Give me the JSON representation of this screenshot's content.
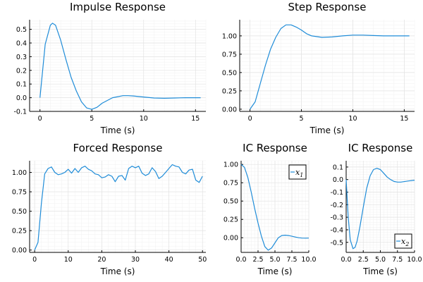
{
  "chart_data": [
    {
      "type": "line",
      "title": "Impulse Response",
      "xlabel": "Time (s)",
      "xlim": [
        -1,
        16
      ],
      "ylim": [
        -0.1,
        0.57
      ],
      "xticks": [
        {
          "v": 0,
          "label": "0"
        },
        {
          "v": 5,
          "label": "5"
        },
        {
          "v": 10,
          "label": "10"
        },
        {
          "v": 15,
          "label": "15"
        }
      ],
      "yticks": [
        {
          "v": -0.1,
          "label": "-0.1"
        },
        {
          "v": 0,
          "label": "0.0"
        },
        {
          "v": 0.1,
          "label": "0.1"
        },
        {
          "v": 0.2,
          "label": "0.2"
        },
        {
          "v": 0.3,
          "label": "0.3"
        },
        {
          "v": 0.4,
          "label": "0.4"
        },
        {
          "v": 0.5,
          "label": "0.5"
        }
      ],
      "grid": true,
      "series": [
        {
          "x": [
            0,
            0.5,
            1,
            1.2,
            1.5,
            2,
            2.5,
            3,
            3.5,
            4,
            4.5,
            5,
            5.5,
            6,
            7,
            8,
            8.5,
            9,
            10,
            11,
            12,
            13,
            14,
            15,
            15.5
          ],
          "y": [
            0,
            0.39,
            0.53,
            0.545,
            0.53,
            0.42,
            0.28,
            0.15,
            0.05,
            -0.03,
            -0.075,
            -0.085,
            -0.07,
            -0.04,
            0.0,
            0.015,
            0.015,
            0.013,
            0.005,
            -0.002,
            -0.004,
            -0.002,
            0.0,
            0.0,
            0.0
          ]
        }
      ]
    },
    {
      "type": "line",
      "title": "Step Response",
      "xlabel": "Time (s)",
      "xlim": [
        -1,
        16
      ],
      "ylim": [
        -0.03,
        1.22
      ],
      "xticks": [
        {
          "v": 0,
          "label": "0"
        },
        {
          "v": 5,
          "label": "5"
        },
        {
          "v": 10,
          "label": "10"
        },
        {
          "v": 15,
          "label": "15"
        }
      ],
      "yticks": [
        {
          "v": 0,
          "label": "0.00"
        },
        {
          "v": 0.25,
          "label": "0.25"
        },
        {
          "v": 0.5,
          "label": "0.50"
        },
        {
          "v": 0.75,
          "label": "0.75"
        },
        {
          "v": 1.0,
          "label": "1.00"
        }
      ],
      "grid": true,
      "series": [
        {
          "x": [
            0,
            0.5,
            1,
            1.5,
            2,
            2.5,
            3,
            3.5,
            4,
            4.5,
            5,
            5.5,
            6,
            7,
            8,
            9,
            10,
            11,
            12,
            13,
            14,
            15,
            15.5
          ],
          "y": [
            0,
            0.1,
            0.35,
            0.6,
            0.82,
            0.98,
            1.1,
            1.15,
            1.15,
            1.12,
            1.08,
            1.03,
            1.0,
            0.98,
            0.985,
            1.0,
            1.01,
            1.01,
            1.005,
            1.0,
            1.0,
            1.0,
            1.0
          ]
        }
      ]
    },
    {
      "type": "line",
      "title": "Forced Response",
      "xlabel": "Time (s)",
      "xlim": [
        -1.5,
        51
      ],
      "ylim": [
        -0.03,
        1.15
      ],
      "xticks": [
        {
          "v": 0,
          "label": "0"
        },
        {
          "v": 10,
          "label": "10"
        },
        {
          "v": 20,
          "label": "20"
        },
        {
          "v": 30,
          "label": "30"
        },
        {
          "v": 40,
          "label": "40"
        },
        {
          "v": 50,
          "label": "50"
        }
      ],
      "yticks": [
        {
          "v": 0,
          "label": "0.00"
        },
        {
          "v": 0.25,
          "label": "0.25"
        },
        {
          "v": 0.5,
          "label": "0.50"
        },
        {
          "v": 0.75,
          "label": "0.75"
        },
        {
          "v": 1.0,
          "label": "1.00"
        }
      ],
      "grid": true,
      "series": [
        {
          "x": [
            0,
            1,
            2,
            3,
            4,
            5,
            6,
            7,
            8,
            9,
            10,
            11,
            12,
            13,
            14,
            15,
            16,
            17,
            18,
            19,
            20,
            21,
            22,
            23,
            24,
            25,
            26,
            27,
            28,
            29,
            30,
            31,
            32,
            33,
            34,
            35,
            36,
            37,
            38,
            39,
            40,
            41,
            42,
            43,
            44,
            45,
            46,
            47,
            48,
            49,
            50
          ],
          "y": [
            0,
            0.1,
            0.6,
            0.98,
            1.05,
            1.07,
            1.0,
            0.97,
            0.98,
            1.0,
            1.04,
            0.99,
            1.05,
            1.0,
            1.06,
            1.08,
            1.04,
            1.02,
            0.98,
            0.97,
            0.93,
            0.94,
            0.97,
            0.95,
            0.88,
            0.95,
            0.96,
            0.9,
            1.05,
            1.08,
            1.06,
            1.08,
            0.99,
            0.96,
            0.98,
            1.06,
            1.01,
            0.92,
            0.95,
            1.0,
            1.05,
            1.1,
            1.08,
            1.07,
            1.0,
            0.98,
            1.03,
            1.04,
            0.9,
            0.87,
            0.95
          ]
        }
      ]
    },
    {
      "type": "line",
      "title": "IC Response",
      "xlabel": "Time (s)",
      "xlim": [
        0,
        10
      ],
      "ylim": [
        -0.2,
        1.05
      ],
      "xticks": [
        {
          "v": 0,
          "label": "0.0"
        },
        {
          "v": 2.5,
          "label": "2.5"
        },
        {
          "v": 5,
          "label": "5.0"
        },
        {
          "v": 7.5,
          "label": "7.5"
        },
        {
          "v": 10,
          "label": "10.0"
        }
      ],
      "yticks": [
        {
          "v": 0,
          "label": "0.00"
        },
        {
          "v": 0.25,
          "label": "0.25"
        },
        {
          "v": 0.5,
          "label": "0.50"
        },
        {
          "v": 0.75,
          "label": "0.75"
        },
        {
          "v": 1.0,
          "label": "1.00"
        }
      ],
      "grid": true,
      "legend": {
        "placement": "top-right",
        "entries": [
          "x1"
        ]
      },
      "series": [
        {
          "name": "x1",
          "x": [
            0,
            0.5,
            1,
            1.5,
            2,
            2.5,
            3,
            3.5,
            4,
            4.5,
            5,
            5.5,
            6,
            6.5,
            7,
            7.5,
            8,
            8.5,
            9,
            9.5,
            10
          ],
          "y": [
            1.0,
            0.96,
            0.82,
            0.62,
            0.4,
            0.2,
            0.02,
            -0.12,
            -0.17,
            -0.14,
            -0.07,
            0.0,
            0.03,
            0.035,
            0.03,
            0.02,
            0.01,
            0.0,
            -0.005,
            -0.006,
            -0.005
          ]
        }
      ]
    },
    {
      "type": "line",
      "title": "IC Response",
      "xlabel": "Time (s)",
      "xlim": [
        0,
        10
      ],
      "ylim": [
        -0.58,
        0.15
      ],
      "xticks": [
        {
          "v": 0,
          "label": "0.0"
        },
        {
          "v": 2.5,
          "label": "2.5"
        },
        {
          "v": 5,
          "label": "5.0"
        },
        {
          "v": 7.5,
          "label": "7.5"
        },
        {
          "v": 10,
          "label": "10.0"
        }
      ],
      "yticks": [
        {
          "v": -0.5,
          "label": "-0.5"
        },
        {
          "v": -0.4,
          "label": "-0.4"
        },
        {
          "v": -0.3,
          "label": "-0.3"
        },
        {
          "v": -0.2,
          "label": "-0.2"
        },
        {
          "v": -0.1,
          "label": "-0.1"
        },
        {
          "v": 0,
          "label": "0.0"
        },
        {
          "v": 0.1,
          "label": "0.1"
        }
      ],
      "grid": true,
      "legend": {
        "placement": "bottom-right",
        "entries": [
          "x2"
        ]
      },
      "series": [
        {
          "name": "x2",
          "x": [
            0,
            0.3,
            0.6,
            1,
            1.3,
            1.6,
            2,
            2.5,
            3,
            3.5,
            4,
            4.5,
            5,
            5.5,
            6,
            6.5,
            7,
            7.5,
            8,
            9,
            10
          ],
          "y": [
            0,
            -0.3,
            -0.48,
            -0.55,
            -0.54,
            -0.49,
            -0.38,
            -0.22,
            -0.07,
            0.03,
            0.08,
            0.09,
            0.08,
            0.05,
            0.02,
            0.0,
            -0.015,
            -0.02,
            -0.02,
            -0.012,
            -0.005
          ]
        }
      ]
    }
  ]
}
